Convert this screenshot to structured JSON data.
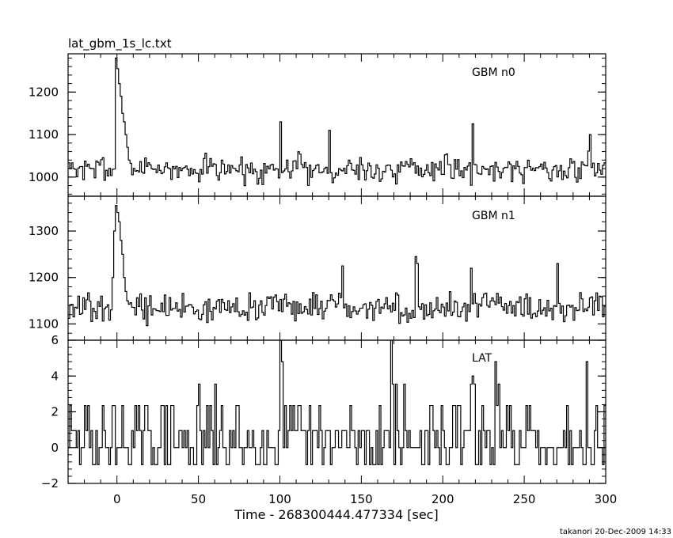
{
  "title": "lat_gbm_1s_lc.txt",
  "footer": "takanori 20-Dec-2009 14:33",
  "chart_data": {
    "type": "line",
    "xlabel": "Time - 268300444.477334 [sec]",
    "xlim": [
      -30,
      300
    ],
    "x_ticks": [
      0,
      50,
      100,
      150,
      200,
      250,
      300
    ],
    "x_tick_labels": [
      "0",
      "50",
      "100",
      "150",
      "200",
      "250",
      "300"
    ],
    "panels": [
      {
        "label": "GBM n0",
        "ylim": [
          955,
          1290
        ],
        "y_ticks": [
          1000,
          1100,
          1200
        ],
        "y_tick_labels": [
          "1000",
          "1100",
          "1200"
        ],
        "step": 1,
        "baseline": 1020,
        "noise": 42,
        "seed": 7,
        "peaks": [
          {
            "t": -1,
            "v": 1280
          },
          {
            "t": 0,
            "v": 1255
          },
          {
            "t": 1,
            "v": 1220
          },
          {
            "t": 2,
            "v": 1190
          },
          {
            "t": 3,
            "v": 1150
          },
          {
            "t": 4,
            "v": 1130
          },
          {
            "t": 5,
            "v": 1100
          },
          {
            "t": 6,
            "v": 1070
          },
          {
            "t": 7,
            "v": 1040
          },
          {
            "t": 100,
            "v": 1130
          },
          {
            "t": 130,
            "v": 1110
          },
          {
            "t": 218,
            "v": 1125
          },
          {
            "t": 290,
            "v": 1100
          }
        ]
      },
      {
        "label": "GBM n1",
        "ylim": [
          1065,
          1375
        ],
        "y_ticks": [
          1100,
          1200,
          1300
        ],
        "y_tick_labels": [
          "1100",
          "1200",
          "1300"
        ],
        "step": 1,
        "baseline": 1135,
        "noise": 40,
        "seed": 13,
        "peaks": [
          {
            "t": -3,
            "v": 1200
          },
          {
            "t": -2,
            "v": 1300
          },
          {
            "t": -1,
            "v": 1355
          },
          {
            "t": 0,
            "v": 1340
          },
          {
            "t": 1,
            "v": 1320
          },
          {
            "t": 2,
            "v": 1280
          },
          {
            "t": 3,
            "v": 1250
          },
          {
            "t": 4,
            "v": 1200
          },
          {
            "t": 5,
            "v": 1170
          },
          {
            "t": 138,
            "v": 1225
          },
          {
            "t": 183,
            "v": 1245
          },
          {
            "t": 184,
            "v": 1230
          },
          {
            "t": 217,
            "v": 1220
          },
          {
            "t": 270,
            "v": 1230
          }
        ]
      },
      {
        "label": "LAT",
        "ylim": [
          -2,
          6
        ],
        "y_ticks": [
          -2,
          0,
          2,
          4,
          6
        ],
        "y_tick_labels": [
          "−2",
          "0",
          "2",
          "4",
          "6"
        ],
        "step": 1,
        "discrete": true,
        "levels": [
          -0.95,
          0,
          0.95,
          2.35,
          3.55,
          4.8,
          6.0
        ],
        "seed": 29,
        "peaks": [
          {
            "t": 100,
            "v": 6.0
          },
          {
            "t": 101,
            "v": 4.8
          },
          {
            "t": 168,
            "v": 6.0
          },
          {
            "t": 169,
            "v": 3.55
          },
          {
            "t": 218,
            "v": 4.0
          },
          {
            "t": 219,
            "v": 3.55
          },
          {
            "t": 232,
            "v": 4.8
          },
          {
            "t": 288,
            "v": 4.8
          }
        ]
      }
    ]
  }
}
